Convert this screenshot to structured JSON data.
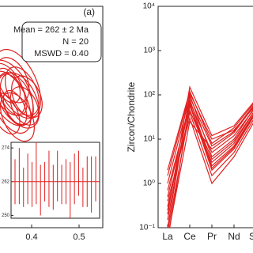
{
  "chart_data": [
    {
      "type": "concordia",
      "panel_label": "(a)",
      "color": "#e0201f",
      "box_lines": [
        "Mean = 262 ± 2 Ma",
        "N = 20",
        "MSWD = 0.40"
      ],
      "xlim": [
        0.33,
        0.55
      ],
      "xticks": [
        0.4,
        0.5
      ],
      "ylim": [
        0.036,
        0.048
      ],
      "ellipses": {
        "x": [
          0.35,
          0.36,
          0.355,
          0.37,
          0.365,
          0.38,
          0.345,
          0.375,
          0.36,
          0.39,
          0.35,
          0.37,
          0.385,
          0.355,
          0.365
        ],
        "y": [
          0.0435,
          0.0432,
          0.0428,
          0.0438,
          0.0425,
          0.0434,
          0.0422,
          0.0429,
          0.044,
          0.0431,
          0.0437,
          0.042,
          0.0426,
          0.0433,
          0.043
        ],
        "xerr": [
          0.03,
          0.025,
          0.035,
          0.04,
          0.02,
          0.03,
          0.025,
          0.035,
          0.03,
          0.028,
          0.022,
          0.03,
          0.026,
          0.04,
          0.033
        ],
        "yerr": [
          0.0015,
          0.0012,
          0.0018,
          0.002,
          0.001,
          0.0014,
          0.0012,
          0.0016,
          0.0013,
          0.0012,
          0.001,
          0.0014,
          0.0011,
          0.0019,
          0.0015
        ]
      },
      "inset": {
        "ylim": [
          249,
          276
        ],
        "yticks": [
          250,
          262,
          274
        ],
        "mean": 262,
        "values": [
          262,
          264,
          260,
          263,
          261,
          265,
          259,
          262,
          263,
          260,
          264,
          261,
          262,
          259,
          263,
          265,
          260,
          262,
          261,
          263
        ],
        "errors": [
          8,
          10,
          7,
          9,
          8,
          11,
          9,
          7,
          10,
          8,
          9,
          7,
          8,
          10,
          9,
          8,
          7,
          9,
          10,
          8
        ]
      }
    },
    {
      "type": "line",
      "color": "#e0201f",
      "ylabel": "Zircon/Chondrite",
      "log": true,
      "categories": [
        "La",
        "Ce",
        "Pr",
        "Nd",
        "Sm"
      ],
      "ylim": [
        0.1,
        10000
      ],
      "yticks": [
        {
          "value": 0.1,
          "label": "10⁻¹"
        },
        {
          "value": 1,
          "label": "10⁰"
        },
        {
          "value": 10,
          "label": "10¹"
        },
        {
          "value": 100,
          "label": "10²"
        },
        {
          "value": 1000,
          "label": "10³"
        },
        {
          "value": 10000,
          "label": "10⁴"
        }
      ],
      "series": [
        {
          "values": [
            0.05,
            60,
            2,
            6,
            40
          ]
        },
        {
          "values": [
            0.08,
            45,
            3,
            8,
            50
          ]
        },
        {
          "values": [
            0.1,
            100,
            4,
            10,
            60
          ]
        },
        {
          "values": [
            0.15,
            80,
            2.5,
            7,
            45
          ]
        },
        {
          "values": [
            0.2,
            150,
            12,
            20,
            80
          ]
        },
        {
          "values": [
            0.3,
            40,
            1.5,
            5,
            35
          ]
        },
        {
          "values": [
            0.5,
            70,
            5,
            12,
            55
          ]
        },
        {
          "values": [
            1,
            90,
            7,
            15,
            70
          ]
        },
        {
          "values": [
            2,
            120,
            8,
            18,
            75
          ]
        },
        {
          "values": [
            0.4,
            30,
            1,
            4,
            30
          ]
        },
        {
          "values": [
            0.7,
            55,
            3.5,
            9,
            50
          ]
        },
        {
          "values": [
            0.06,
            25,
            6,
            14,
            65
          ]
        },
        {
          "values": [
            1.5,
            110,
            10,
            16,
            60
          ]
        },
        {
          "values": [
            0.25,
            65,
            2.2,
            6.5,
            42
          ]
        }
      ]
    }
  ]
}
